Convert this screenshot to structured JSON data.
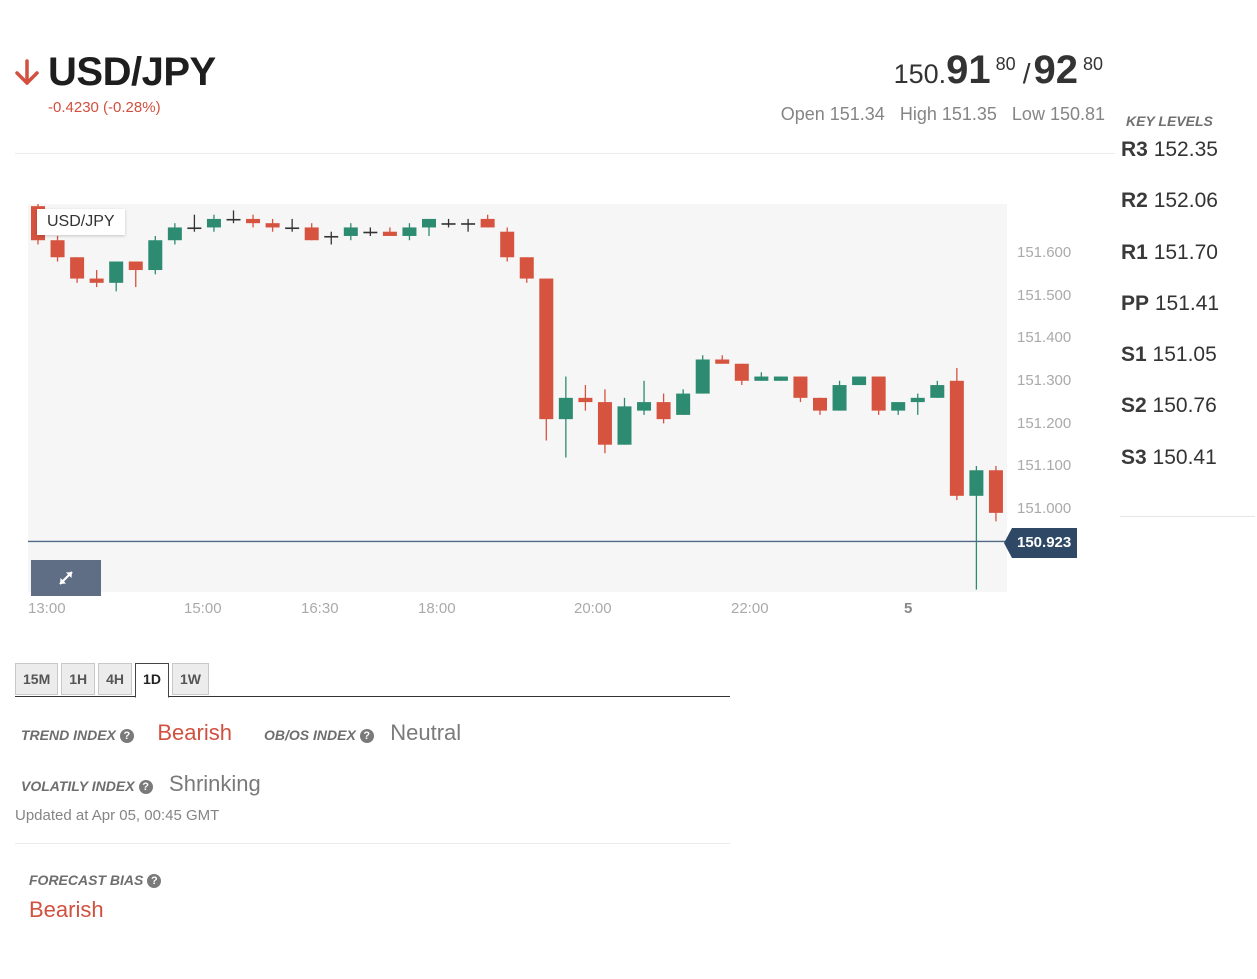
{
  "header": {
    "pair": "USD/JPY",
    "change": "-0.4230 (-0.28%)",
    "direction_icon": "arrow-down-icon",
    "down_color": "#d2503f"
  },
  "quote": {
    "bid_prefix": "150.",
    "bid_big": "91",
    "bid_pip": "80",
    "separator": "/",
    "ask_big": "92",
    "ask_pip": "80"
  },
  "ohl": {
    "open": "Open 151.34",
    "high": "High 151.35",
    "low": "Low 150.81"
  },
  "key_levels": {
    "title": "KEY LEVELS",
    "items": [
      {
        "label": "R3",
        "value": "152.35"
      },
      {
        "label": "R2",
        "value": "152.06"
      },
      {
        "label": "R1",
        "value": "151.70"
      },
      {
        "label": "PP",
        "value": "151.41"
      },
      {
        "label": "S1",
        "value": "151.05"
      },
      {
        "label": "S2",
        "value": "150.76"
      },
      {
        "label": "S3",
        "value": "150.41"
      }
    ]
  },
  "chart": {
    "label": "USD/JPY",
    "price_tag": "150.923",
    "expand_icon": "expand-arrows-icon",
    "y_ticks": [
      "151.600",
      "151.500",
      "151.400",
      "151.300",
      "151.200",
      "151.100",
      "151.000"
    ],
    "x_ticks": [
      "13:00",
      "15:00",
      "16:30",
      "18:00",
      "20:00",
      "22:00",
      "5"
    ],
    "colors": {
      "up": "#2d8b71",
      "down": "#d5533f",
      "cross": "#333333",
      "current_line": "#4e6a86",
      "price_tag": "#2f4865"
    }
  },
  "chart_data": {
    "type": "candlestick",
    "symbol": "USD/JPY",
    "y_range": [
      150.81,
      151.73
    ],
    "y_ticks": [
      151.6,
      151.5,
      151.4,
      151.3,
      151.2,
      151.1,
      151.0
    ],
    "x_ticks": [
      "13:00",
      "15:00",
      "16:30",
      "18:00",
      "20:00",
      "22:00",
      "5"
    ],
    "current_price": 150.923,
    "candles": [
      {
        "o": 151.71,
        "h": 151.72,
        "l": 151.62,
        "c": 151.63
      },
      {
        "o": 151.63,
        "h": 151.64,
        "l": 151.58,
        "c": 151.59
      },
      {
        "o": 151.59,
        "h": 151.59,
        "l": 151.53,
        "c": 151.54
      },
      {
        "o": 151.54,
        "h": 151.56,
        "l": 151.52,
        "c": 151.53
      },
      {
        "o": 151.53,
        "h": 151.58,
        "l": 151.51,
        "c": 151.58
      },
      {
        "o": 151.58,
        "h": 151.58,
        "l": 151.52,
        "c": 151.56
      },
      {
        "o": 151.56,
        "h": 151.64,
        "l": 151.55,
        "c": 151.63
      },
      {
        "o": 151.63,
        "h": 151.67,
        "l": 151.62,
        "c": 151.66
      },
      {
        "o": 151.66,
        "h": 151.69,
        "l": 151.65,
        "c": 151.66
      },
      {
        "o": 151.66,
        "h": 151.69,
        "l": 151.65,
        "c": 151.68
      },
      {
        "o": 151.68,
        "h": 151.7,
        "l": 151.67,
        "c": 151.68
      },
      {
        "o": 151.68,
        "h": 151.69,
        "l": 151.66,
        "c": 151.67
      },
      {
        "o": 151.67,
        "h": 151.68,
        "l": 151.65,
        "c": 151.66
      },
      {
        "o": 151.66,
        "h": 151.68,
        "l": 151.65,
        "c": 151.66
      },
      {
        "o": 151.66,
        "h": 151.67,
        "l": 151.63,
        "c": 151.63
      },
      {
        "o": 151.64,
        "h": 151.65,
        "l": 151.62,
        "c": 151.64
      },
      {
        "o": 151.64,
        "h": 151.67,
        "l": 151.63,
        "c": 151.66
      },
      {
        "o": 151.65,
        "h": 151.66,
        "l": 151.64,
        "c": 151.65
      },
      {
        "o": 151.65,
        "h": 151.66,
        "l": 151.64,
        "c": 151.64
      },
      {
        "o": 151.64,
        "h": 151.67,
        "l": 151.63,
        "c": 151.66
      },
      {
        "o": 151.66,
        "h": 151.68,
        "l": 151.64,
        "c": 151.68
      },
      {
        "o": 151.67,
        "h": 151.68,
        "l": 151.66,
        "c": 151.67
      },
      {
        "o": 151.67,
        "h": 151.68,
        "l": 151.65,
        "c": 151.67
      },
      {
        "o": 151.68,
        "h": 151.69,
        "l": 151.66,
        "c": 151.66
      },
      {
        "o": 151.65,
        "h": 151.66,
        "l": 151.58,
        "c": 151.59
      },
      {
        "o": 151.59,
        "h": 151.59,
        "l": 151.53,
        "c": 151.54
      },
      {
        "o": 151.54,
        "h": 151.54,
        "l": 151.16,
        "c": 151.21
      },
      {
        "o": 151.21,
        "h": 151.31,
        "l": 151.12,
        "c": 151.26
      },
      {
        "o": 151.26,
        "h": 151.29,
        "l": 151.23,
        "c": 151.25
      },
      {
        "o": 151.25,
        "h": 151.28,
        "l": 151.13,
        "c": 151.15
      },
      {
        "o": 151.15,
        "h": 151.26,
        "l": 151.15,
        "c": 151.24
      },
      {
        "o": 151.23,
        "h": 151.3,
        "l": 151.22,
        "c": 151.25
      },
      {
        "o": 151.25,
        "h": 151.27,
        "l": 151.2,
        "c": 151.21
      },
      {
        "o": 151.22,
        "h": 151.28,
        "l": 151.22,
        "c": 151.27
      },
      {
        "o": 151.27,
        "h": 151.36,
        "l": 151.27,
        "c": 151.35
      },
      {
        "o": 151.35,
        "h": 151.36,
        "l": 151.34,
        "c": 151.34
      },
      {
        "o": 151.34,
        "h": 151.34,
        "l": 151.29,
        "c": 151.3
      },
      {
        "o": 151.3,
        "h": 151.32,
        "l": 151.3,
        "c": 151.31
      },
      {
        "o": 151.3,
        "h": 151.31,
        "l": 151.3,
        "c": 151.31
      },
      {
        "o": 151.31,
        "h": 151.31,
        "l": 151.25,
        "c": 151.26
      },
      {
        "o": 151.26,
        "h": 151.26,
        "l": 151.22,
        "c": 151.23
      },
      {
        "o": 151.23,
        "h": 151.3,
        "l": 151.23,
        "c": 151.29
      },
      {
        "o": 151.29,
        "h": 151.31,
        "l": 151.29,
        "c": 151.31
      },
      {
        "o": 151.31,
        "h": 151.31,
        "l": 151.22,
        "c": 151.23
      },
      {
        "o": 151.23,
        "h": 151.25,
        "l": 151.22,
        "c": 151.25
      },
      {
        "o": 151.25,
        "h": 151.27,
        "l": 151.22,
        "c": 151.26
      },
      {
        "o": 151.26,
        "h": 151.3,
        "l": 151.26,
        "c": 151.29
      },
      {
        "o": 151.3,
        "h": 151.33,
        "l": 151.02,
        "c": 151.03
      },
      {
        "o": 151.03,
        "h": 151.1,
        "l": 150.81,
        "c": 151.09
      },
      {
        "o": 151.09,
        "h": 151.1,
        "l": 150.97,
        "c": 150.99
      },
      {
        "o": 150.99,
        "h": 150.99,
        "l": 150.83,
        "c": 150.92
      },
      {
        "o": 150.92,
        "h": 150.93,
        "l": 150.92,
        "c": 150.93
      }
    ]
  },
  "timeframes": {
    "items": [
      "15M",
      "1H",
      "4H",
      "1D",
      "1W"
    ],
    "active": "1D"
  },
  "indicators": {
    "trend_label": "TREND INDEX",
    "trend_value": "Bearish",
    "obos_label": "OB/OS INDEX",
    "obos_value": "Neutral",
    "volatility_label": "VOLATILY INDEX",
    "volatility_value": "Shrinking",
    "help_glyph": "?",
    "help_icon": "question-circle-icon",
    "updated": "Updated at Apr 05, 00:45 GMT"
  },
  "forecast": {
    "label": "FORECAST BIAS",
    "value": "Bearish"
  }
}
